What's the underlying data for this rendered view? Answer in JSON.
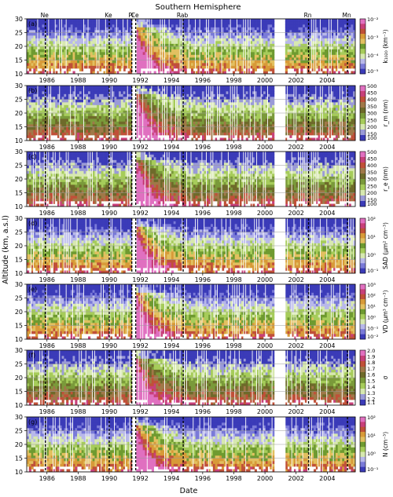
{
  "figure": {
    "title": "Southern Hemisphere",
    "shared_ylabel": "Altitude (km, a.s.l)",
    "shared_xlabel": "Date"
  },
  "chart_data": {
    "type": "heatmap",
    "x": {
      "label": "Date",
      "range": [
        1984.7,
        2005.8
      ],
      "ticks": [
        1986,
        1988,
        1990,
        1992,
        1994,
        1996,
        1998,
        2000,
        2002,
        2004
      ]
    },
    "y": {
      "label": "Altitude (km, a.s.l)",
      "range": [
        10,
        30
      ],
      "ticks": [
        10,
        15,
        20,
        25,
        30
      ]
    },
    "grid": true,
    "events": [
      {
        "label": "Ne",
        "year": 1985.9
      },
      {
        "label": "Ke",
        "year": 1990.0
      },
      {
        "label": "Pi",
        "year": 1991.45
      },
      {
        "label": "Ce",
        "year": 1991.7
      },
      {
        "label": "Rab",
        "year": 1994.75
      },
      {
        "label": "Rn",
        "year": 2002.8
      },
      {
        "label": "Mn",
        "year": 2005.3
      }
    ],
    "panels": [
      {
        "id": "(a)",
        "cbar_label": "k₁₀₂₀ (km⁻¹)",
        "scale": "log",
        "cbar_ticks": [
          "10⁻²",
          "10⁻³",
          "10⁻⁴",
          "10⁻⁵"
        ],
        "cmap": "rainbow"
      },
      {
        "id": "(b)",
        "cbar_label": "r_m (nm)",
        "scale": "linear",
        "cbar_ticks": [
          "500",
          "450",
          "400",
          "350",
          "300",
          "250",
          "200",
          "150",
          "100"
        ],
        "cmap": "green"
      },
      {
        "id": "(c)",
        "cbar_label": "r_e (nm)",
        "scale": "linear",
        "cbar_ticks": [
          "500",
          "450",
          "400",
          "350",
          "300",
          "250",
          "200",
          "150",
          "100"
        ],
        "cmap": "green"
      },
      {
        "id": "(d)",
        "cbar_label": "SAD (μm² cm⁻³)",
        "scale": "log",
        "cbar_ticks": [
          "10²",
          "10¹",
          "10⁰",
          "10⁻¹"
        ],
        "cmap": "rainbow"
      },
      {
        "id": "(e)",
        "cbar_label": "VD (μm³ cm⁻³)",
        "scale": "log",
        "cbar_ticks": [
          "10³",
          "10²",
          "10¹",
          "10⁰",
          "10⁻¹",
          "10⁻²"
        ],
        "cmap": "rainbow"
      },
      {
        "id": "(f)",
        "cbar_label": "σ",
        "scale": "linear",
        "cbar_ticks": [
          "2.0",
          "1.9",
          "1.8",
          "1.7",
          "1.6",
          "1.5",
          "1.4",
          "1.3",
          "1.2",
          "1.1"
        ],
        "cmap": "green"
      },
      {
        "id": "(g)",
        "cbar_label": "N (cm⁻³)",
        "scale": "log",
        "cbar_ticks": [
          "10²",
          "10¹",
          "10⁰",
          "10⁻¹"
        ],
        "cmap": "rainbow"
      }
    ]
  },
  "colors": {
    "rainbow": [
      "#3b3bb8",
      "#7a7ad8",
      "#b8b8ea",
      "#d7e8b0",
      "#a6cc5a",
      "#6e9a30",
      "#e2c060",
      "#d89a38",
      "#c05038",
      "#c8407a",
      "#e070c0"
    ],
    "green": [
      "#3b3bb8",
      "#9a9ad8",
      "#d7e8b0",
      "#a6cc5a",
      "#7a9a3a",
      "#6e6a2a",
      "#a07848",
      "#c05038",
      "#c8407a",
      "#e070c0"
    ]
  }
}
